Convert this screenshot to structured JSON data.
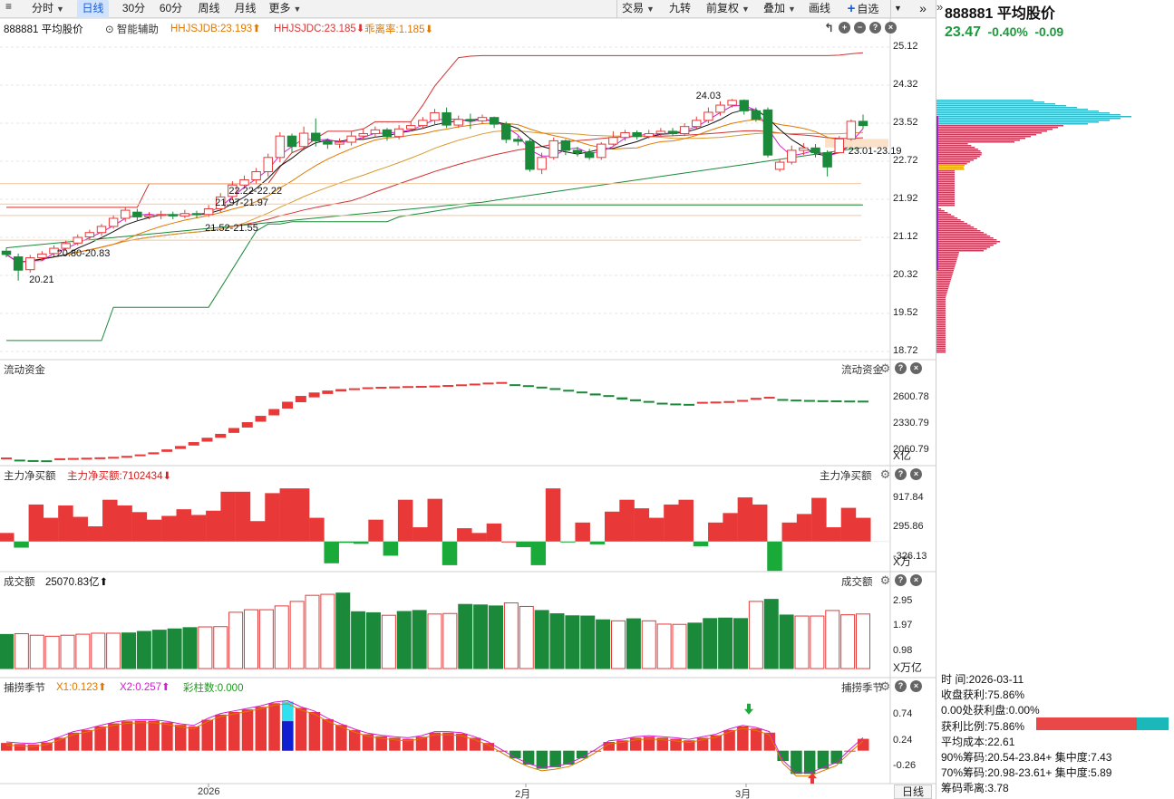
{
  "toolbar": {
    "left": [
      {
        "label": "分时",
        "caret": true
      },
      {
        "label": "日线",
        "active": true
      },
      {
        "label": "30分"
      },
      {
        "label": "60分"
      },
      {
        "label": "周线"
      },
      {
        "label": "月线"
      },
      {
        "label": "更多",
        "caret": true
      }
    ],
    "right": [
      {
        "label": "交易",
        "caret": true
      },
      {
        "label": "九转"
      },
      {
        "label": "前复权",
        "caret": true
      },
      {
        "label": "叠加",
        "caret": true
      },
      {
        "label": "画线"
      },
      {
        "label": "自选",
        "plus": true
      }
    ]
  },
  "main_panel": {
    "stock_label": "888881 平均股价",
    "assist_label": "智能辅助",
    "indicators": [
      {
        "text": "HHJSJDB:23.193",
        "arrow": "up",
        "color": "#e07800"
      },
      {
        "text": "HHJSJDC:23.185",
        "arrow": "down",
        "color": "#e03030"
      },
      {
        "text": "乖离率:1.185",
        "arrow": "down",
        "color": "#e07800"
      }
    ],
    "y_ticks": [
      "25.12",
      "24.32",
      "23.52",
      "22.72",
      "21.92",
      "21.12",
      "20.32",
      "19.52",
      "18.72"
    ],
    "annotations": [
      "24.03",
      "23.01-23.19",
      "22.22-22.22",
      "21.97-21.97",
      "21.52-21.55",
      "20.80-20.83",
      "20.21"
    ]
  },
  "fund_panel": {
    "label": "流动资金",
    "right_label": "流动资金",
    "y_ticks": [
      "2600.78",
      "2330.79",
      "2060.79"
    ],
    "unit": "X亿"
  },
  "net_panel": {
    "label": "主力净买额",
    "indicator": "主力净买额:7102434",
    "arrow": "down",
    "right_label": "主力净买额",
    "y_ticks": [
      "917.84",
      "295.86",
      "-326.13"
    ],
    "unit": "X万"
  },
  "volume_panel": {
    "label": "成交额",
    "indicator": "25070.83亿",
    "arrow": "up",
    "right_label": "成交额",
    "y_ticks": [
      "2.95",
      "1.97",
      "0.98"
    ],
    "unit": "X万亿"
  },
  "season_panel": {
    "label": "捕捞季节",
    "indicators": [
      {
        "text": "X1:0.123",
        "arrow": "up",
        "color": "#e07800"
      },
      {
        "text": "X2:0.257",
        "arrow": "up",
        "color": "#d020d0"
      },
      {
        "text": "彩柱数:0.000",
        "arrow": "",
        "color": "#1a9a1a"
      }
    ],
    "right_label": "捕捞季节",
    "y_ticks": [
      "0.74",
      "0.24",
      "-0.26"
    ]
  },
  "x_axis": [
    "2026",
    "2月",
    "3月"
  ],
  "period_button": "日线",
  "quote": {
    "title": "888881 平均股价",
    "price": "23.47",
    "change_pct": "-0.40%",
    "change": "-0.09"
  },
  "chip_info": [
    "时      间:2026-03-11",
    "收盘获利:75.86%",
    "0.00处获利盘:0.00%",
    "获利比例:75.86%",
    "平均成本:22.61",
    "90%筹码:20.54-23.84+ 集中度:7.43",
    "70%筹码:20.98-23.61+ 集中度:5.89",
    "筹码乖离:3.78"
  ],
  "chip_profit_ratio": 0.7586,
  "colors": {
    "up": "#e83838",
    "down": "#1a8a3a",
    "accent": "#1a5bd8",
    "price_down": "#1a9a3a"
  },
  "chart_data": {
    "type": "candlestick",
    "candles": [
      [
        20.83,
        20.76,
        20.9,
        20.7
      ],
      [
        20.71,
        20.43,
        20.78,
        20.21
      ],
      [
        20.44,
        20.69,
        20.75,
        20.38
      ],
      [
        20.69,
        20.77,
        20.83,
        20.62
      ],
      [
        20.78,
        20.89,
        20.95,
        20.72
      ],
      [
        20.89,
        20.99,
        21.05,
        20.84
      ],
      [
        21.0,
        21.12,
        21.18,
        20.95
      ],
      [
        21.13,
        21.22,
        21.28,
        21.07
      ],
      [
        21.22,
        21.35,
        21.4,
        21.15
      ],
      [
        21.35,
        21.52,
        21.58,
        21.3
      ],
      [
        21.52,
        21.69,
        21.75,
        21.45
      ],
      [
        21.65,
        21.55,
        21.72,
        21.48
      ],
      [
        21.55,
        21.58,
        21.65,
        21.5
      ],
      [
        21.58,
        21.6,
        21.68,
        21.5
      ],
      [
        21.6,
        21.57,
        21.66,
        21.5
      ],
      [
        21.57,
        21.62,
        21.7,
        21.52
      ],
      [
        21.62,
        21.6,
        21.68,
        21.52
      ],
      [
        21.6,
        21.72,
        21.8,
        21.55
      ],
      [
        21.72,
        21.97,
        22.05,
        21.65
      ],
      [
        21.98,
        22.22,
        22.3,
        21.9
      ],
      [
        22.22,
        22.33,
        22.42,
        22.15
      ],
      [
        22.33,
        22.5,
        22.58,
        22.25
      ],
      [
        22.5,
        22.8,
        22.88,
        22.4
      ],
      [
        22.8,
        23.25,
        23.33,
        22.7
      ],
      [
        23.25,
        23.03,
        23.3,
        22.9
      ],
      [
        23.03,
        23.31,
        23.45,
        22.95
      ],
      [
        23.31,
        23.15,
        23.62,
        23.03
      ],
      [
        23.15,
        23.08,
        23.2,
        22.98
      ],
      [
        23.08,
        23.12,
        23.2,
        23.0
      ],
      [
        23.12,
        23.25,
        23.35,
        23.05
      ],
      [
        23.25,
        23.3,
        23.4,
        23.18
      ],
      [
        23.3,
        23.38,
        23.45,
        23.22
      ],
      [
        23.38,
        23.24,
        23.42,
        23.15
      ],
      [
        23.24,
        23.4,
        23.48,
        23.18
      ],
      [
        23.4,
        23.47,
        23.55,
        23.35
      ],
      [
        23.47,
        23.58,
        23.65,
        23.4
      ],
      [
        23.58,
        23.74,
        23.82,
        23.5
      ],
      [
        23.74,
        23.48,
        23.85,
        23.42
      ],
      [
        23.48,
        23.6,
        23.68,
        23.42
      ],
      [
        23.6,
        23.57,
        23.72,
        23.4
      ],
      [
        23.57,
        23.64,
        23.7,
        23.5
      ],
      [
        23.64,
        23.5,
        23.66,
        23.42
      ],
      [
        23.5,
        23.18,
        23.55,
        23.1
      ],
      [
        23.18,
        23.14,
        23.25,
        23.05
      ],
      [
        23.14,
        22.55,
        23.2,
        22.5
      ],
      [
        22.55,
        22.8,
        22.9,
        22.45
      ],
      [
        22.8,
        23.15,
        23.22,
        22.75
      ],
      [
        23.15,
        22.95,
        23.18,
        22.85
      ],
      [
        22.95,
        22.9,
        23.02,
        22.82
      ],
      [
        22.9,
        22.8,
        22.98,
        22.75
      ],
      [
        22.8,
        23.08,
        23.12,
        22.75
      ],
      [
        23.08,
        23.22,
        23.35,
        23.05
      ],
      [
        23.22,
        23.32,
        23.38,
        23.15
      ],
      [
        23.32,
        23.24,
        23.37,
        23.18
      ],
      [
        23.24,
        23.3,
        23.38,
        23.2
      ],
      [
        23.3,
        23.35,
        23.42,
        23.25
      ],
      [
        23.35,
        23.3,
        23.42,
        23.25
      ],
      [
        23.3,
        23.45,
        23.52,
        23.25
      ],
      [
        23.45,
        23.58,
        23.66,
        23.4
      ],
      [
        23.58,
        23.75,
        23.85,
        23.52
      ],
      [
        23.75,
        23.9,
        23.98,
        23.68
      ],
      [
        23.9,
        24.0,
        24.03,
        23.85
      ],
      [
        24.0,
        23.78,
        24.02,
        23.7
      ],
      [
        23.78,
        23.6,
        23.85,
        23.55
      ],
      [
        23.8,
        22.85,
        23.85,
        22.8
      ],
      [
        22.55,
        22.7,
        22.75,
        22.5
      ],
      [
        22.7,
        22.95,
        23.05,
        22.65
      ],
      [
        22.95,
        23.0,
        23.1,
        22.85
      ],
      [
        23.0,
        22.9,
        23.08,
        22.8
      ],
      [
        22.9,
        22.6,
        22.95,
        22.4
      ],
      [
        22.9,
        23.19,
        23.25,
        23.01
      ],
      [
        23.19,
        23.56,
        23.6,
        23.15
      ],
      [
        23.56,
        23.47,
        23.7,
        23.4
      ]
    ],
    "dates_visible": [
      "2026",
      "2月",
      "3月"
    ],
    "ylim": [
      18.72,
      25.12
    ],
    "fund_values": [
      1968,
      1965,
      1960,
      1958,
      1960,
      1963,
      1966,
      1970,
      1975,
      1985,
      2000,
      2020,
      2045,
      2075,
      2110,
      2150,
      2190,
      2240,
      2295,
      2355,
      2420,
      2490,
      2555,
      2605,
      2640,
      2665,
      2680,
      2690,
      2695,
      2698,
      2702,
      2704,
      2708,
      2713,
      2720,
      2728,
      2738,
      2744,
      2740,
      2730,
      2715,
      2700,
      2683,
      2665,
      2645,
      2628,
      2605,
      2585,
      2568,
      2550,
      2542,
      2538,
      2540,
      2543,
      2548,
      2560,
      2580,
      2592,
      2588,
      2582,
      2578,
      2575,
      2574,
      2572,
      2571
    ],
    "net_values": [
      180,
      -130,
      780,
      500,
      760,
      520,
      320,
      880,
      760,
      620,
      460,
      540,
      680,
      560,
      650,
      1050,
      1050,
      430,
      1020,
      1120,
      1120,
      500,
      -460,
      -30,
      -50,
      460,
      -300,
      880,
      300,
      900,
      -500,
      280,
      180,
      380,
      0,
      -120,
      -500,
      1120,
      -20,
      400,
      -60,
      630,
      880,
      700,
      500,
      780,
      880,
      -100,
      400,
      600,
      930,
      780,
      -620,
      400,
      580,
      920,
      300,
      710,
      500
    ],
    "volume_values": [
      1.65,
      1.68,
      1.62,
      1.58,
      1.62,
      1.66,
      1.7,
      1.7,
      1.71,
      1.77,
      1.82,
      1.87,
      1.92,
      1.95,
      1.96,
      2.53,
      2.63,
      2.63,
      2.78,
      2.96,
      3.2,
      3.24,
      3.29,
      2.55,
      2.51,
      2.41,
      2.56,
      2.6,
      2.46,
      2.48,
      2.84,
      2.82,
      2.78,
      2.9,
      2.76,
      2.6,
      2.47,
      2.39,
      2.38,
      2.23,
      2.19,
      2.27,
      2.19,
      2.06,
      2.05,
      2.1,
      2.28,
      2.3,
      2.28,
      2.96,
      3.04,
      2.42,
      2.38,
      2.38,
      2.6,
      2.43,
      2.46
    ],
    "season_values": [
      0.2,
      0.18,
      0.17,
      0.21,
      0.3,
      0.4,
      0.45,
      0.52,
      0.58,
      0.62,
      0.63,
      0.63,
      0.6,
      0.55,
      0.52,
      0.65,
      0.75,
      0.8,
      0.85,
      0.9,
      0.97,
      1.0,
      0.88,
      0.8,
      0.66,
      0.55,
      0.45,
      0.37,
      0.33,
      0.3,
      0.28,
      0.32,
      0.4,
      0.4,
      0.38,
      0.3,
      0.2,
      0.05,
      -0.1,
      -0.22,
      -0.3,
      -0.27,
      -0.22,
      -0.1,
      0.05,
      0.22,
      0.25,
      0.3,
      0.32,
      0.3,
      0.28,
      0.25,
      0.3,
      0.35,
      0.45,
      0.52,
      0.48,
      0.4,
      -0.15,
      -0.4,
      -0.4,
      -0.3,
      -0.2,
      0.05,
      0.28
    ]
  }
}
